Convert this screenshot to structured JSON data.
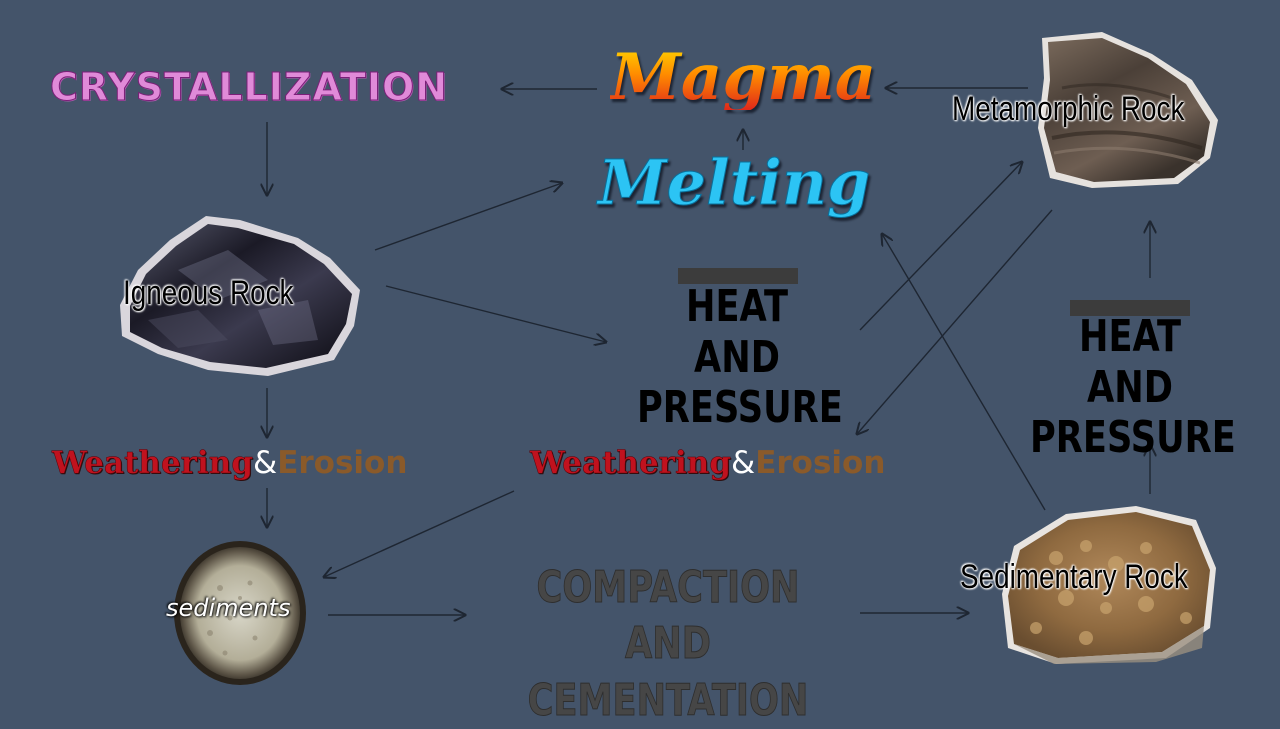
{
  "nodes": {
    "crystallization": "CRYSTALLIZATION",
    "magma": "Magma",
    "melting": "Melting",
    "igneous_rock": "Igneous Rock",
    "metamorphic_rock": "Metamorphic Rock",
    "sedimentary_rock": "Sedimentary Rock",
    "sediments": "sediments",
    "heat_pressure_1": "HEAT AND PRESSURE",
    "heat_pressure_2": "HEAT AND PRESSURE",
    "compaction": "COMPACTION AND CEMENTATION",
    "weathering_1": {
      "part1": "Weathering",
      "amp": "&",
      "part2": "Erosion"
    },
    "weathering_2": {
      "part1": "Weathering",
      "amp": "&",
      "part2": "Erosion"
    }
  },
  "colors": {
    "background": "#44546a",
    "crystallization": "#e08ad8",
    "magma": "#ff7a00",
    "melting": "#2cc4f4",
    "weathering": "#c0121e",
    "erosion": "#8a5a2a",
    "arrow": "#1e2632",
    "compaction": "#464646"
  }
}
